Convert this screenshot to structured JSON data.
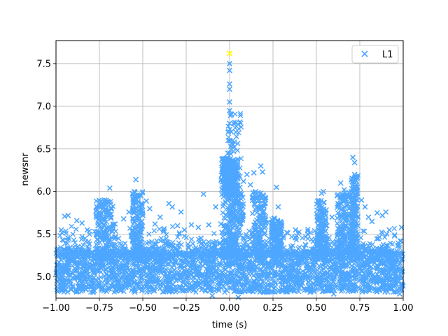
{
  "chart_data": {
    "type": "scatter",
    "title": "",
    "xlabel": "time (s)",
    "ylabel": "newsnr",
    "xlim": [
      -1.0,
      1.0
    ],
    "ylim": [
      4.75,
      7.77
    ],
    "x_ticks": [
      "−1.00",
      "−0.75",
      "−0.50",
      "−0.25",
      "0.00",
      "0.25",
      "0.50",
      "0.75",
      "1.00"
    ],
    "x_tick_values": [
      -1.0,
      -0.75,
      -0.5,
      -0.25,
      0.0,
      0.25,
      0.5,
      0.75,
      1.0
    ],
    "y_ticks": [
      "5.0",
      "5.5",
      "6.0",
      "6.5",
      "7.0",
      "7.5"
    ],
    "y_tick_values": [
      5.0,
      5.5,
      6.0,
      6.5,
      7.0,
      7.5
    ],
    "grid": true,
    "legend_position": "upper-right",
    "marker": "x",
    "series": [
      {
        "name": "L1",
        "color": "#4da6ff",
        "points": [
          [
            -0.95,
            5.71
          ],
          [
            -0.93,
            5.72
          ],
          [
            -0.97,
            5.55
          ],
          [
            -0.88,
            5.66
          ],
          [
            -0.85,
            5.63
          ],
          [
            -0.82,
            5.55
          ],
          [
            -0.77,
            5.77
          ],
          [
            -0.75,
            5.82
          ],
          [
            -0.72,
            5.9
          ],
          [
            -0.7,
            5.88
          ],
          [
            -0.69,
            6.04
          ],
          [
            -0.66,
            5.62
          ],
          [
            -0.64,
            5.45
          ],
          [
            -0.61,
            5.68
          ],
          [
            -0.58,
            5.76
          ],
          [
            -0.55,
            6.0
          ],
          [
            -0.54,
            6.14
          ],
          [
            -0.53,
            5.96
          ],
          [
            -0.5,
            5.72
          ],
          [
            -0.48,
            5.89
          ],
          [
            -0.46,
            5.8
          ],
          [
            -0.43,
            5.62
          ],
          [
            -0.4,
            5.7
          ],
          [
            -0.38,
            5.55
          ],
          [
            -0.35,
            5.86
          ],
          [
            -0.33,
            5.82
          ],
          [
            -0.3,
            5.6
          ],
          [
            -0.28,
            5.76
          ],
          [
            -0.26,
            5.55
          ],
          [
            -0.22,
            5.61
          ],
          [
            -0.18,
            5.58
          ],
          [
            -0.15,
            5.97
          ],
          [
            -0.12,
            5.61
          ],
          [
            -0.08,
            5.82
          ],
          [
            -0.05,
            5.62
          ],
          [
            -0.03,
            6.05
          ],
          [
            -0.02,
            6.2
          ],
          [
            -0.01,
            6.45
          ],
          [
            0.0,
            6.6
          ],
          [
            0.0,
            6.8
          ],
          [
            0.0,
            6.95
          ],
          [
            0.0,
            7.05
          ],
          [
            0.0,
            7.2
          ],
          [
            0.0,
            7.26
          ],
          [
            0.0,
            7.42
          ],
          [
            0.0,
            7.5
          ],
          [
            0.01,
            6.9
          ],
          [
            0.01,
            6.7
          ],
          [
            0.02,
            6.55
          ],
          [
            0.03,
            6.35
          ],
          [
            0.04,
            6.25
          ],
          [
            0.05,
            6.18
          ],
          [
            0.06,
            6.05
          ],
          [
            0.08,
            6.12
          ],
          [
            0.1,
            6.2
          ],
          [
            0.12,
            6.08
          ],
          [
            0.14,
            6.22
          ],
          [
            0.15,
            6.0
          ],
          [
            0.17,
            5.94
          ],
          [
            0.18,
            6.3
          ],
          [
            0.19,
            6.23
          ],
          [
            0.2,
            5.86
          ],
          [
            0.22,
            5.64
          ],
          [
            0.24,
            5.55
          ],
          [
            0.27,
            6.05
          ],
          [
            0.28,
            5.82
          ],
          [
            0.3,
            5.6
          ],
          [
            0.33,
            5.52
          ],
          [
            0.38,
            5.55
          ],
          [
            0.45,
            5.5
          ],
          [
            0.49,
            5.54
          ],
          [
            0.52,
            5.8
          ],
          [
            0.53,
            5.98
          ],
          [
            0.54,
            6.0
          ],
          [
            0.56,
            5.6
          ],
          [
            0.59,
            5.7
          ],
          [
            0.62,
            5.95
          ],
          [
            0.64,
            6.1
          ],
          [
            0.66,
            6.02
          ],
          [
            0.68,
            5.85
          ],
          [
            0.7,
            6.0
          ],
          [
            0.71,
            6.4
          ],
          [
            0.72,
            6.34
          ],
          [
            0.72,
            6.2
          ],
          [
            0.73,
            6.05
          ],
          [
            0.76,
            5.9
          ],
          [
            0.78,
            5.82
          ],
          [
            0.8,
            5.7
          ],
          [
            0.82,
            5.65
          ],
          [
            0.85,
            5.75
          ],
          [
            0.88,
            5.72
          ],
          [
            0.9,
            5.76
          ],
          [
            0.92,
            5.55
          ],
          [
            0.95,
            5.48
          ],
          [
            0.99,
            5.58
          ],
          [
            -0.92,
            4.95
          ],
          [
            -0.6,
            4.88
          ],
          [
            -0.1,
            4.78
          ],
          [
            0.05,
            4.76
          ],
          [
            0.2,
            4.82
          ],
          [
            0.3,
            4.85
          ],
          [
            0.6,
            4.8
          ],
          [
            0.98,
            4.8
          ]
        ]
      }
    ],
    "highlight_point": {
      "x": 0.0,
      "y": 7.62,
      "color": "#ffff00"
    }
  },
  "legend": {
    "label": "L1"
  }
}
